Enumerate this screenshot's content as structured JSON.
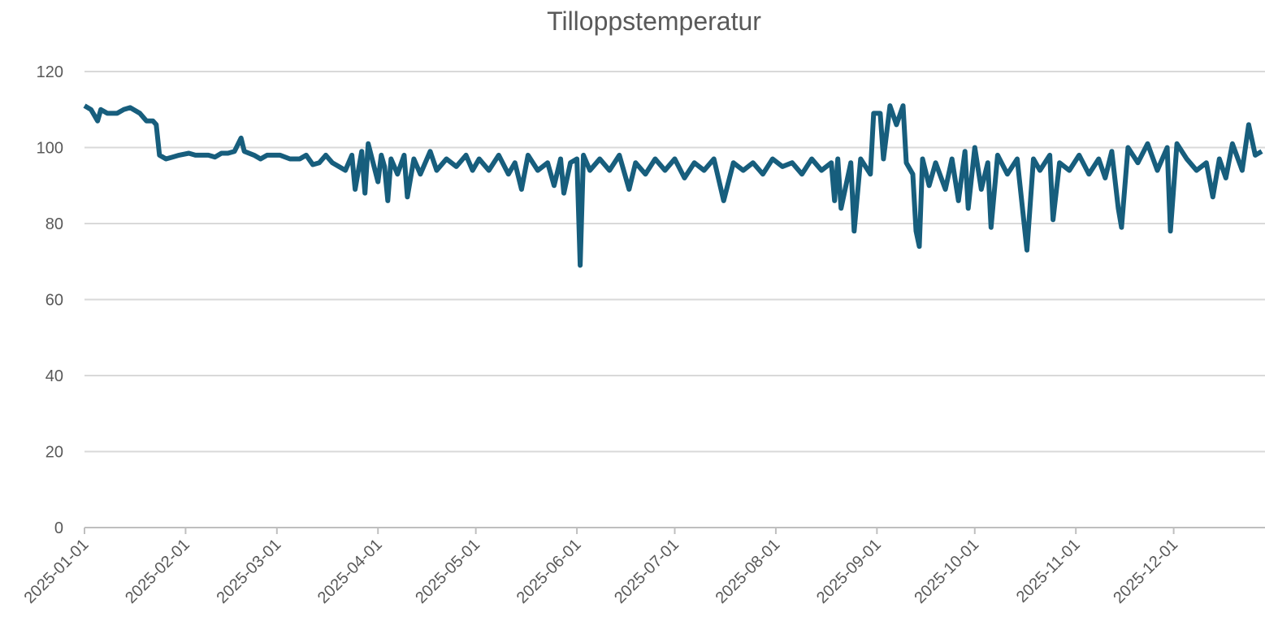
{
  "chart_data": {
    "type": "line",
    "title": "Tilloppstemperatur",
    "x": [
      "2025-01-01",
      "2025-01-03",
      "2025-01-05",
      "2025-01-06",
      "2025-01-08",
      "2025-01-11",
      "2025-01-13",
      "2025-01-15",
      "2025-01-18",
      "2025-01-20",
      "2025-01-22",
      "2025-01-23",
      "2025-01-24",
      "2025-01-26",
      "2025-01-28",
      "2025-01-30",
      "2025-02-02",
      "2025-02-04",
      "2025-02-06",
      "2025-02-08",
      "2025-02-10",
      "2025-02-12",
      "2025-02-14",
      "2025-02-16",
      "2025-02-18",
      "2025-02-19",
      "2025-02-22",
      "2025-02-24",
      "2025-02-26",
      "2025-02-28",
      "2025-03-02",
      "2025-03-05",
      "2025-03-08",
      "2025-03-10",
      "2025-03-12",
      "2025-03-14",
      "2025-03-16",
      "2025-03-18",
      "2025-03-20",
      "2025-03-22",
      "2025-03-24",
      "2025-03-25",
      "2025-03-27",
      "2025-03-28",
      "2025-03-29",
      "2025-04-01",
      "2025-04-02",
      "2025-04-03",
      "2025-04-04",
      "2025-04-05",
      "2025-04-07",
      "2025-04-09",
      "2025-04-10",
      "2025-04-12",
      "2025-04-14",
      "2025-04-17",
      "2025-04-19",
      "2025-04-22",
      "2025-04-25",
      "2025-04-28",
      "2025-04-30",
      "2025-05-02",
      "2025-05-05",
      "2025-05-08",
      "2025-05-11",
      "2025-05-13",
      "2025-05-15",
      "2025-05-17",
      "2025-05-20",
      "2025-05-23",
      "2025-05-25",
      "2025-05-27",
      "2025-05-28",
      "2025-05-30",
      "2025-06-01",
      "2025-06-02",
      "2025-06-03",
      "2025-06-05",
      "2025-06-08",
      "2025-06-11",
      "2025-06-14",
      "2025-06-17",
      "2025-06-19",
      "2025-06-22",
      "2025-06-25",
      "2025-06-28",
      "2025-07-01",
      "2025-07-04",
      "2025-07-07",
      "2025-07-10",
      "2025-07-13",
      "2025-07-16",
      "2025-07-19",
      "2025-07-22",
      "2025-07-25",
      "2025-07-28",
      "2025-07-31",
      "2025-08-03",
      "2025-08-06",
      "2025-08-09",
      "2025-08-12",
      "2025-08-15",
      "2025-08-18",
      "2025-08-19",
      "2025-08-20",
      "2025-08-21",
      "2025-08-24",
      "2025-08-25",
      "2025-08-27",
      "2025-08-30",
      "2025-08-31",
      "2025-09-02",
      "2025-09-03",
      "2025-09-05",
      "2025-09-07",
      "2025-09-09",
      "2025-09-10",
      "2025-09-12",
      "2025-09-13",
      "2025-09-14",
      "2025-09-15",
      "2025-09-17",
      "2025-09-19",
      "2025-09-22",
      "2025-09-24",
      "2025-09-26",
      "2025-09-28",
      "2025-09-29",
      "2025-10-01",
      "2025-10-03",
      "2025-10-05",
      "2025-10-06",
      "2025-10-08",
      "2025-10-11",
      "2025-10-14",
      "2025-10-17",
      "2025-10-19",
      "2025-10-21",
      "2025-10-24",
      "2025-10-25",
      "2025-10-27",
      "2025-10-30",
      "2025-11-02",
      "2025-11-05",
      "2025-11-08",
      "2025-11-10",
      "2025-11-12",
      "2025-11-14",
      "2025-11-15",
      "2025-11-17",
      "2025-11-20",
      "2025-11-23",
      "2025-11-26",
      "2025-11-29",
      "2025-11-30",
      "2025-12-02",
      "2025-12-05",
      "2025-12-08",
      "2025-12-11",
      "2025-12-13",
      "2025-12-15",
      "2025-12-17",
      "2025-12-19",
      "2025-12-22",
      "2025-12-24",
      "2025-12-26",
      "2025-12-28"
    ],
    "series": [
      {
        "name": "Tilloppstemperatur",
        "color": "#175e7d",
        "values": [
          111,
          110,
          107,
          110,
          109,
          109,
          110,
          110.5,
          109,
          107,
          107,
          106,
          98,
          97,
          97.5,
          98,
          98.5,
          98,
          98,
          98,
          97.5,
          98.5,
          98.5,
          99,
          102.5,
          99,
          98,
          97,
          98,
          98,
          98,
          97,
          97,
          98,
          95.5,
          96,
          98,
          96,
          95,
          94,
          98,
          89,
          99,
          88,
          101,
          91,
          98,
          95,
          86,
          97,
          93,
          98,
          87,
          97,
          93,
          99,
          94,
          97,
          95,
          98,
          94,
          97,
          94,
          98,
          93,
          96,
          89,
          98,
          94,
          96,
          90,
          97,
          88,
          96,
          97,
          69,
          98,
          94,
          97,
          94,
          98,
          89,
          96,
          93,
          97,
          94,
          97,
          92,
          96,
          94,
          97,
          86,
          96,
          94,
          96,
          93,
          97,
          95,
          96,
          93,
          97,
          94,
          96,
          86,
          97,
          84,
          96,
          78,
          97,
          93,
          109,
          109,
          97,
          111,
          106,
          111,
          96,
          93,
          78,
          74,
          97,
          90,
          96,
          89,
          97,
          86,
          99,
          84,
          100,
          89,
          96,
          79,
          98,
          93,
          97,
          73,
          97,
          94,
          98,
          81,
          96,
          94,
          98,
          93,
          97,
          92,
          99,
          84,
          79,
          100,
          96,
          101,
          94,
          100,
          78,
          101,
          97,
          94,
          96,
          87,
          97,
          92,
          101,
          94,
          106,
          98,
          99
        ]
      }
    ],
    "xlim": [
      "2025-01-01",
      "2025-12-29"
    ],
    "xticks": [
      "2025-01-01",
      "2025-02-01",
      "2025-03-01",
      "2025-04-01",
      "2025-05-01",
      "2025-06-01",
      "2025-07-01",
      "2025-08-01",
      "2025-09-01",
      "2025-10-01",
      "2025-11-01",
      "2025-12-01"
    ],
    "ylim": [
      0,
      120
    ],
    "yticks": [
      0,
      20,
      40,
      60,
      80,
      100,
      120
    ],
    "grid": true
  }
}
